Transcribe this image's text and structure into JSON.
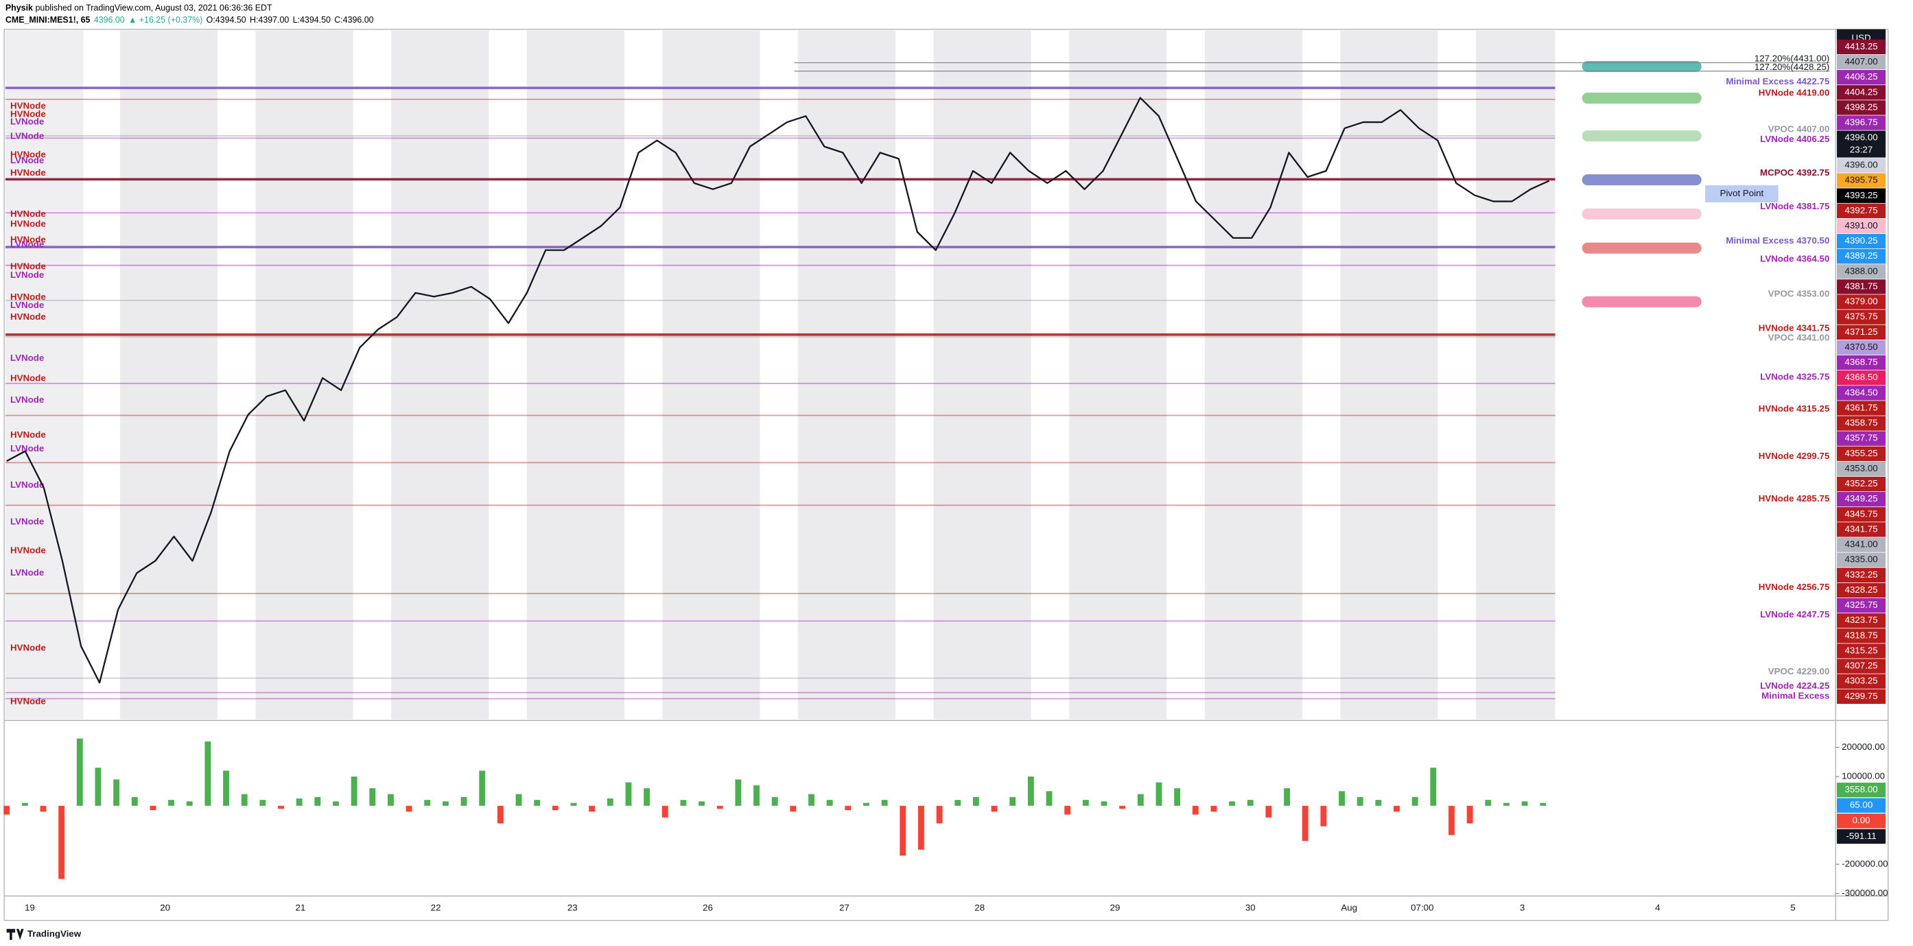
{
  "header": {
    "author": "Physik",
    "published": "published on TradingView.com, August 03, 2021 06:36:36 EDT",
    "symbol": "CME_MINI:MES1!, 65",
    "last": "4396.00",
    "change": "▲ +16.25 (+0.37%)",
    "ohlc": [
      "O:4394.50",
      "H:4397.00",
      "L:4394.50",
      "C:4396.00"
    ]
  },
  "currency": "USD",
  "footer": "TradingView",
  "chart_data": [
    {
      "type": "line",
      "color": "#131722",
      "ylim": [
        4215.5,
        4442
      ],
      "values": [
        4300.25,
        4303.5,
        4291.5,
        4267.5,
        4239.5,
        4227.5,
        4251.5,
        4263.5,
        4267.5,
        4275.5,
        4267.5,
        4283.5,
        4303.5,
        4315.5,
        4321.5,
        4323.5,
        4313.5,
        4327.5,
        4323.5,
        4337.5,
        4343.5,
        4347.5,
        4355.5,
        4354.25,
        4355.5,
        4357.5,
        4353.5,
        4345.5,
        4355.5,
        4369.5,
        4369.5,
        4373.5,
        4377.5,
        4383.5,
        4401.5,
        4405.5,
        4401.5,
        4391.5,
        4389.5,
        4391.5,
        4403.5,
        4407.5,
        4411.5,
        4413.5,
        4403.5,
        4401.5,
        4391.5,
        4401.5,
        4399.5,
        4375.5,
        4369.5,
        4381.5,
        4395.5,
        4391.5,
        4401.5,
        4395.5,
        4391.5,
        4395.5,
        4389.5,
        4395.5,
        4407.5,
        4419.5,
        4413.5,
        4399.5,
        4385.5,
        4379.5,
        4373.5,
        4373.5,
        4383.5,
        4401.5,
        4393.5,
        4395.5,
        4409.5,
        4411.5,
        4411.5,
        4415.5,
        4409.5,
        4405.5,
        4391.5,
        4387.5,
        4385.5,
        4385.5,
        4389.5,
        4392.25
      ],
      "date_labels": [
        "19",
        "20",
        "21",
        "22",
        "23",
        "26",
        "27",
        "28",
        "29",
        "30",
        "Aug",
        "07:00",
        "3",
        "4",
        "5"
      ],
      "levels": [
        {
          "label": "Minimal Excess 4422.75",
          "price": 4422.75,
          "color": "#7e57c2",
          "thick": true
        },
        {
          "label": "HVNode 4419.00",
          "price": 4419,
          "color": "#b71c1c"
        },
        {
          "label": "VPOC 4407.00",
          "price": 4407,
          "color": "#9598a1"
        },
        {
          "label": "LVNode 4406.25",
          "price": 4406.25,
          "color": "#9c27b0"
        },
        {
          "label": "MCPOC 4392.75",
          "price": 4392.75,
          "color": "#880e2f",
          "thick": true
        },
        {
          "label": "LVNode 4381.75",
          "price": 4381.75,
          "color": "#9c27b0"
        },
        {
          "label": "Minimal Excess 4370.50",
          "price": 4370.5,
          "color": "#7e57c2",
          "thick": true
        },
        {
          "label": "LVNode 4364.50",
          "price": 4364.5,
          "color": "#9c27b0"
        },
        {
          "label": "VPOC 4353.00",
          "price": 4353,
          "color": "#9598a1"
        },
        {
          "label": "HVNode 4341.75",
          "price": 4341.75,
          "color": "#b71c1c",
          "thick": true
        },
        {
          "label": "VPOC 4341.00",
          "price": 4341,
          "color": "#9598a1"
        },
        {
          "label": "LVNode 4325.75",
          "price": 4325.75,
          "color": "#9c27b0"
        },
        {
          "label": "HVNode 4315.25",
          "price": 4315.25,
          "color": "#b71c1c"
        },
        {
          "label": "HVNode 4299.75",
          "price": 4299.75,
          "color": "#b71c1c"
        },
        {
          "label": "HVNode 4285.75",
          "price": 4285.75,
          "color": "#b71c1c"
        },
        {
          "label": "HVNode 4256.75",
          "price": 4256.75,
          "color": "#b71c1c"
        },
        {
          "label": "LVNode 4247.75",
          "price": 4247.75,
          "color": "#9c27b0"
        },
        {
          "label": "VPOC 4229.00",
          "price": 4229,
          "color": "#9598a1"
        },
        {
          "label": "LVNode 4224.25",
          "price": 4224.25,
          "color": "#9c27b0"
        },
        {
          "label": "Minimal Excess",
          "price": 4222.25,
          "color": "#9c27b0"
        }
      ],
      "fib_levels": [
        {
          "label": "127.20%(4431.00)",
          "price": 4431
        },
        {
          "label": "127.20%(4428.25)",
          "price": 4428.25
        }
      ],
      "pivot_label": "Pivot Point",
      "profile_labels": [
        {
          "label": "HVNode",
          "price": 4416.75,
          "color": "#b71c1c"
        },
        {
          "label": "HVNode",
          "price": 4414,
          "color": "#b71c1c"
        },
        {
          "label": "LVNode",
          "price": 4411.5,
          "color": "#9c27b0"
        },
        {
          "label": "LVNode",
          "price": 4406.75,
          "color": "#9c27b0"
        },
        {
          "label": "HVNode",
          "price": 4400.75,
          "color": "#b71c1c"
        },
        {
          "label": "LVNode",
          "price": 4398.75,
          "color": "#9c27b0"
        },
        {
          "label": "HVNode",
          "price": 4394.75,
          "color": "#b71c1c"
        },
        {
          "label": "HVNode",
          "price": 4381.25,
          "color": "#b71c1c"
        },
        {
          "label": "HVNode",
          "price": 4378,
          "color": "#b71c1c"
        },
        {
          "label": "HVNode",
          "price": 4372.75,
          "color": "#b71c1c"
        },
        {
          "label": "LVNode",
          "price": 4371.25,
          "color": "#9c27b0"
        },
        {
          "label": "HVNode",
          "price": 4364,
          "color": "#b71c1c"
        },
        {
          "label": "LVNode",
          "price": 4361.25,
          "color": "#9c27b0"
        },
        {
          "label": "HVNode",
          "price": 4354,
          "color": "#b71c1c"
        },
        {
          "label": "LVNode",
          "price": 4351.25,
          "color": "#9c27b0"
        },
        {
          "label": "HVNode",
          "price": 4347.5,
          "color": "#b71c1c"
        },
        {
          "label": "LVNode",
          "price": 4334,
          "color": "#9c27b0"
        },
        {
          "label": "HVNode",
          "price": 4327.25,
          "color": "#b71c1c"
        },
        {
          "label": "LVNode",
          "price": 4320.25,
          "color": "#9c27b0"
        },
        {
          "label": "HVNode",
          "price": 4308.75,
          "color": "#b71c1c"
        },
        {
          "label": "LVNode",
          "price": 4304.25,
          "color": "#9c27b0"
        },
        {
          "label": "LVNode",
          "price": 4292.25,
          "color": "#9c27b0"
        },
        {
          "label": "LVNode",
          "price": 4280.25,
          "color": "#9c27b0"
        },
        {
          "label": "HVNode",
          "price": 4270.75,
          "color": "#b71c1c"
        },
        {
          "label": "LVNode",
          "price": 4263.5,
          "color": "#9c27b0"
        },
        {
          "label": "HVNode",
          "price": 4238.75,
          "color": "#b71c1c"
        },
        {
          "label": "HVNode",
          "price": 4221.25,
          "color": "#b71c1c"
        }
      ],
      "price_labels": [
        {
          "text": "4413.25",
          "color": "#880e2f"
        },
        {
          "text": "4407.00",
          "color": "#b2b5be"
        },
        {
          "text": "4406.25",
          "color": "#9c27b0"
        },
        {
          "text": "4404.25",
          "color": "#880e2f"
        },
        {
          "text": "4398.25",
          "color": "#880e2f"
        },
        {
          "text": "4396.75",
          "color": "#9c27b0"
        },
        {
          "text": "4396.00",
          "color": "#131722",
          "countdown": "23:27"
        },
        {
          "text": "4396.00",
          "color": "#d1d4dc"
        },
        {
          "text": "4395.75",
          "color": "#f9a825"
        },
        {
          "text": "4393.25",
          "color": "#000000"
        },
        {
          "text": "4392.75",
          "color": "#b71c1c"
        },
        {
          "text": "4391.00",
          "color": "#f8bbd0"
        },
        {
          "text": "4390.25",
          "color": "#2196f3"
        },
        {
          "text": "4389.25",
          "color": "#2196f3"
        },
        {
          "text": "4388.00",
          "color": "#b2b5be"
        },
        {
          "text": "4381.75",
          "color": "#880e2f"
        },
        {
          "text": "4379.00",
          "color": "#b71c1c"
        },
        {
          "text": "4375.75",
          "color": "#b71c1c"
        },
        {
          "text": "4371.25",
          "color": "#b71c1c"
        },
        {
          "text": "4370.50",
          "color": "#b39ddb"
        },
        {
          "text": "4368.75",
          "color": "#9c27b0"
        },
        {
          "text": "4368.50",
          "color": "#e91e63"
        },
        {
          "text": "4364.50",
          "color": "#9c27b0"
        },
        {
          "text": "4361.75",
          "color": "#b71c1c"
        },
        {
          "text": "4358.75",
          "color": "#b71c1c"
        },
        {
          "text": "4357.75",
          "color": "#9c27b0"
        },
        {
          "text": "4355.25",
          "color": "#b71c1c"
        },
        {
          "text": "4353.00",
          "color": "#b2b5be"
        },
        {
          "text": "4352.25",
          "color": "#b71c1c"
        },
        {
          "text": "4349.25",
          "color": "#9c27b0"
        },
        {
          "text": "4345.75",
          "color": "#b71c1c"
        },
        {
          "text": "4341.75",
          "color": "#b71c1c"
        },
        {
          "text": "4341.00",
          "color": "#b2b5be"
        },
        {
          "text": "4335.00",
          "color": "#b2b5be"
        },
        {
          "text": "4332.25",
          "color": "#b71c1c"
        },
        {
          "text": "4328.25",
          "color": "#b71c1c"
        },
        {
          "text": "4325.75",
          "color": "#9c27b0"
        },
        {
          "text": "4323.75",
          "color": "#b71c1c"
        },
        {
          "text": "4318.75",
          "color": "#b71c1c"
        },
        {
          "text": "4315.25",
          "color": "#b71c1c"
        },
        {
          "text": "4307.25",
          "color": "#b71c1c"
        },
        {
          "text": "4303.25",
          "color": "#b71c1c"
        },
        {
          "text": "4299.75",
          "color": "#b71c1c"
        }
      ]
    },
    {
      "type": "bar",
      "up_color": "#4caf50",
      "down_color": "#f44336",
      "ylim": [
        -300000,
        275000
      ],
      "yticks": [
        {
          "value": 200000,
          "label": "200000.00"
        },
        {
          "value": 100000,
          "label": "100000.00"
        },
        {
          "value": -200000,
          "label": "-200000.00"
        },
        {
          "value": -300000,
          "label": "-300000.00"
        }
      ],
      "values": [
        -30000,
        10000,
        -20000,
        -250000,
        230000,
        130000,
        90000,
        30000,
        -15000,
        20000,
        15000,
        220000,
        120000,
        40000,
        20000,
        -10000,
        25000,
        30000,
        15000,
        100000,
        60000,
        40000,
        -20000,
        20000,
        15000,
        30000,
        120000,
        -60000,
        40000,
        20000,
        -15000,
        10000,
        -20000,
        25000,
        80000,
        60000,
        -40000,
        20000,
        15000,
        -10000,
        90000,
        70000,
        30000,
        -20000,
        40000,
        20000,
        -15000,
        10000,
        20000,
        -170000,
        -150000,
        -60000,
        20000,
        30000,
        -20000,
        30000,
        100000,
        50000,
        -30000,
        20000,
        15000,
        -10000,
        40000,
        80000,
        60000,
        -30000,
        -20000,
        15000,
        20000,
        -40000,
        60000,
        -120000,
        -70000,
        50000,
        30000,
        20000,
        -20000,
        30000,
        130000,
        -100000,
        -60000,
        20000,
        10000,
        15000,
        10000
      ],
      "last_values": [
        {
          "text": "3558.00",
          "color": "#4caf50"
        },
        {
          "text": "65.00",
          "color": "#2196f3"
        },
        {
          "text": "0.00",
          "color": "#f44336"
        },
        {
          "text": "-591.11",
          "color": "#131722"
        }
      ]
    }
  ]
}
